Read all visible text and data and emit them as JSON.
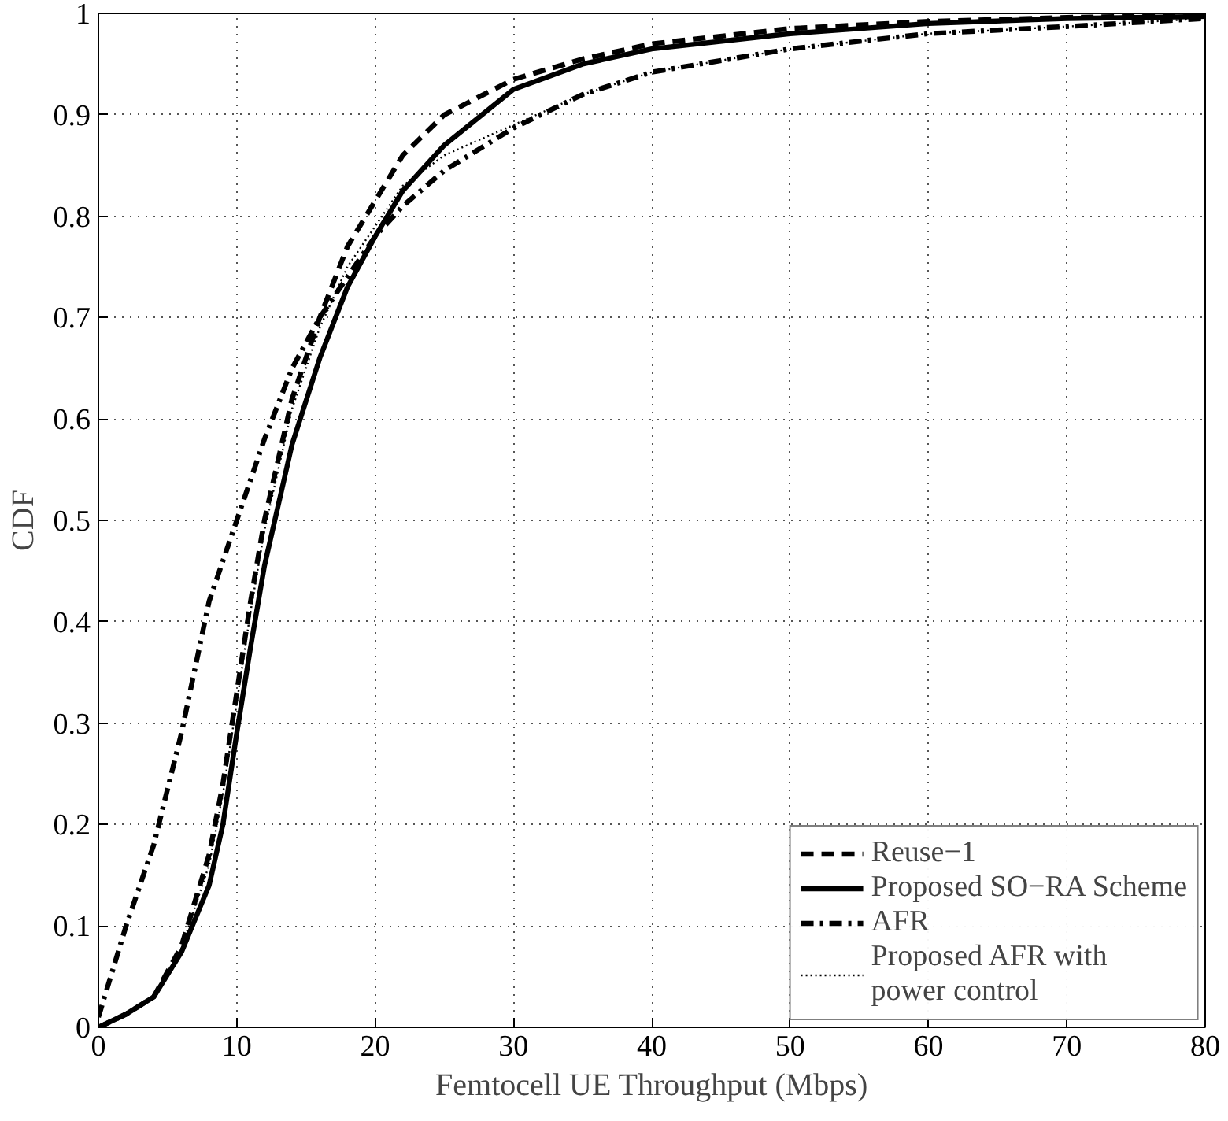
{
  "chart_data": {
    "type": "line",
    "xlabel": "Femtocell UE Throughput (Mbps)",
    "ylabel": "CDF",
    "x": [
      0,
      2,
      4,
      6,
      8,
      9,
      10,
      11,
      12,
      14,
      16,
      18,
      20,
      22,
      25,
      30,
      35,
      40,
      50,
      60,
      70,
      80
    ],
    "xlim": [
      0,
      80
    ],
    "ylim": [
      0,
      1
    ],
    "xticks": [
      0,
      10,
      20,
      30,
      40,
      50,
      60,
      70,
      80
    ],
    "yticks": [
      0,
      0.1,
      0.2,
      0.3,
      0.4,
      0.5,
      0.6,
      0.7,
      0.8,
      0.9,
      1
    ],
    "grid": true,
    "legend": "bottom right",
    "marker": "none",
    "series": [
      {
        "name": "Reuse−1",
        "color": "#000000",
        "line_style": "dashed",
        "values": [
          0,
          0.013,
          0.03,
          0.08,
          0.17,
          0.24,
          0.33,
          0.42,
          0.5,
          0.62,
          0.7,
          0.77,
          0.815,
          0.86,
          0.9,
          0.935,
          0.955,
          0.97,
          0.985,
          0.992,
          0.996,
          0.998
        ]
      },
      {
        "name": "Proposed SO−RA Scheme",
        "color": "#000000",
        "line_style": "solid",
        "values": [
          0,
          0.013,
          0.03,
          0.074,
          0.14,
          0.2,
          0.29,
          0.375,
          0.455,
          0.575,
          0.66,
          0.73,
          0.78,
          0.825,
          0.87,
          0.925,
          0.95,
          0.965,
          0.98,
          0.99,
          0.995,
          0.997
        ]
      },
      {
        "name": "AFR",
        "color": "#000000",
        "line_style": "dashdot",
        "values": [
          0.01,
          0.1,
          0.18,
          0.29,
          0.42,
          0.46,
          0.5,
          0.54,
          0.58,
          0.65,
          0.7,
          0.74,
          0.78,
          0.81,
          0.845,
          0.887,
          0.92,
          0.942,
          0.965,
          0.98,
          0.987,
          0.995
        ]
      },
      {
        "name": "Proposed AFR with\npower control",
        "color": "#000000",
        "line_style": "dotted",
        "values": [
          0,
          0.013,
          0.03,
          0.078,
          0.16,
          0.23,
          0.32,
          0.41,
          0.49,
          0.61,
          0.69,
          0.75,
          0.79,
          0.83,
          0.86,
          0.89,
          0.92,
          0.942,
          0.965,
          0.98,
          0.987,
          0.995
        ]
      }
    ]
  }
}
